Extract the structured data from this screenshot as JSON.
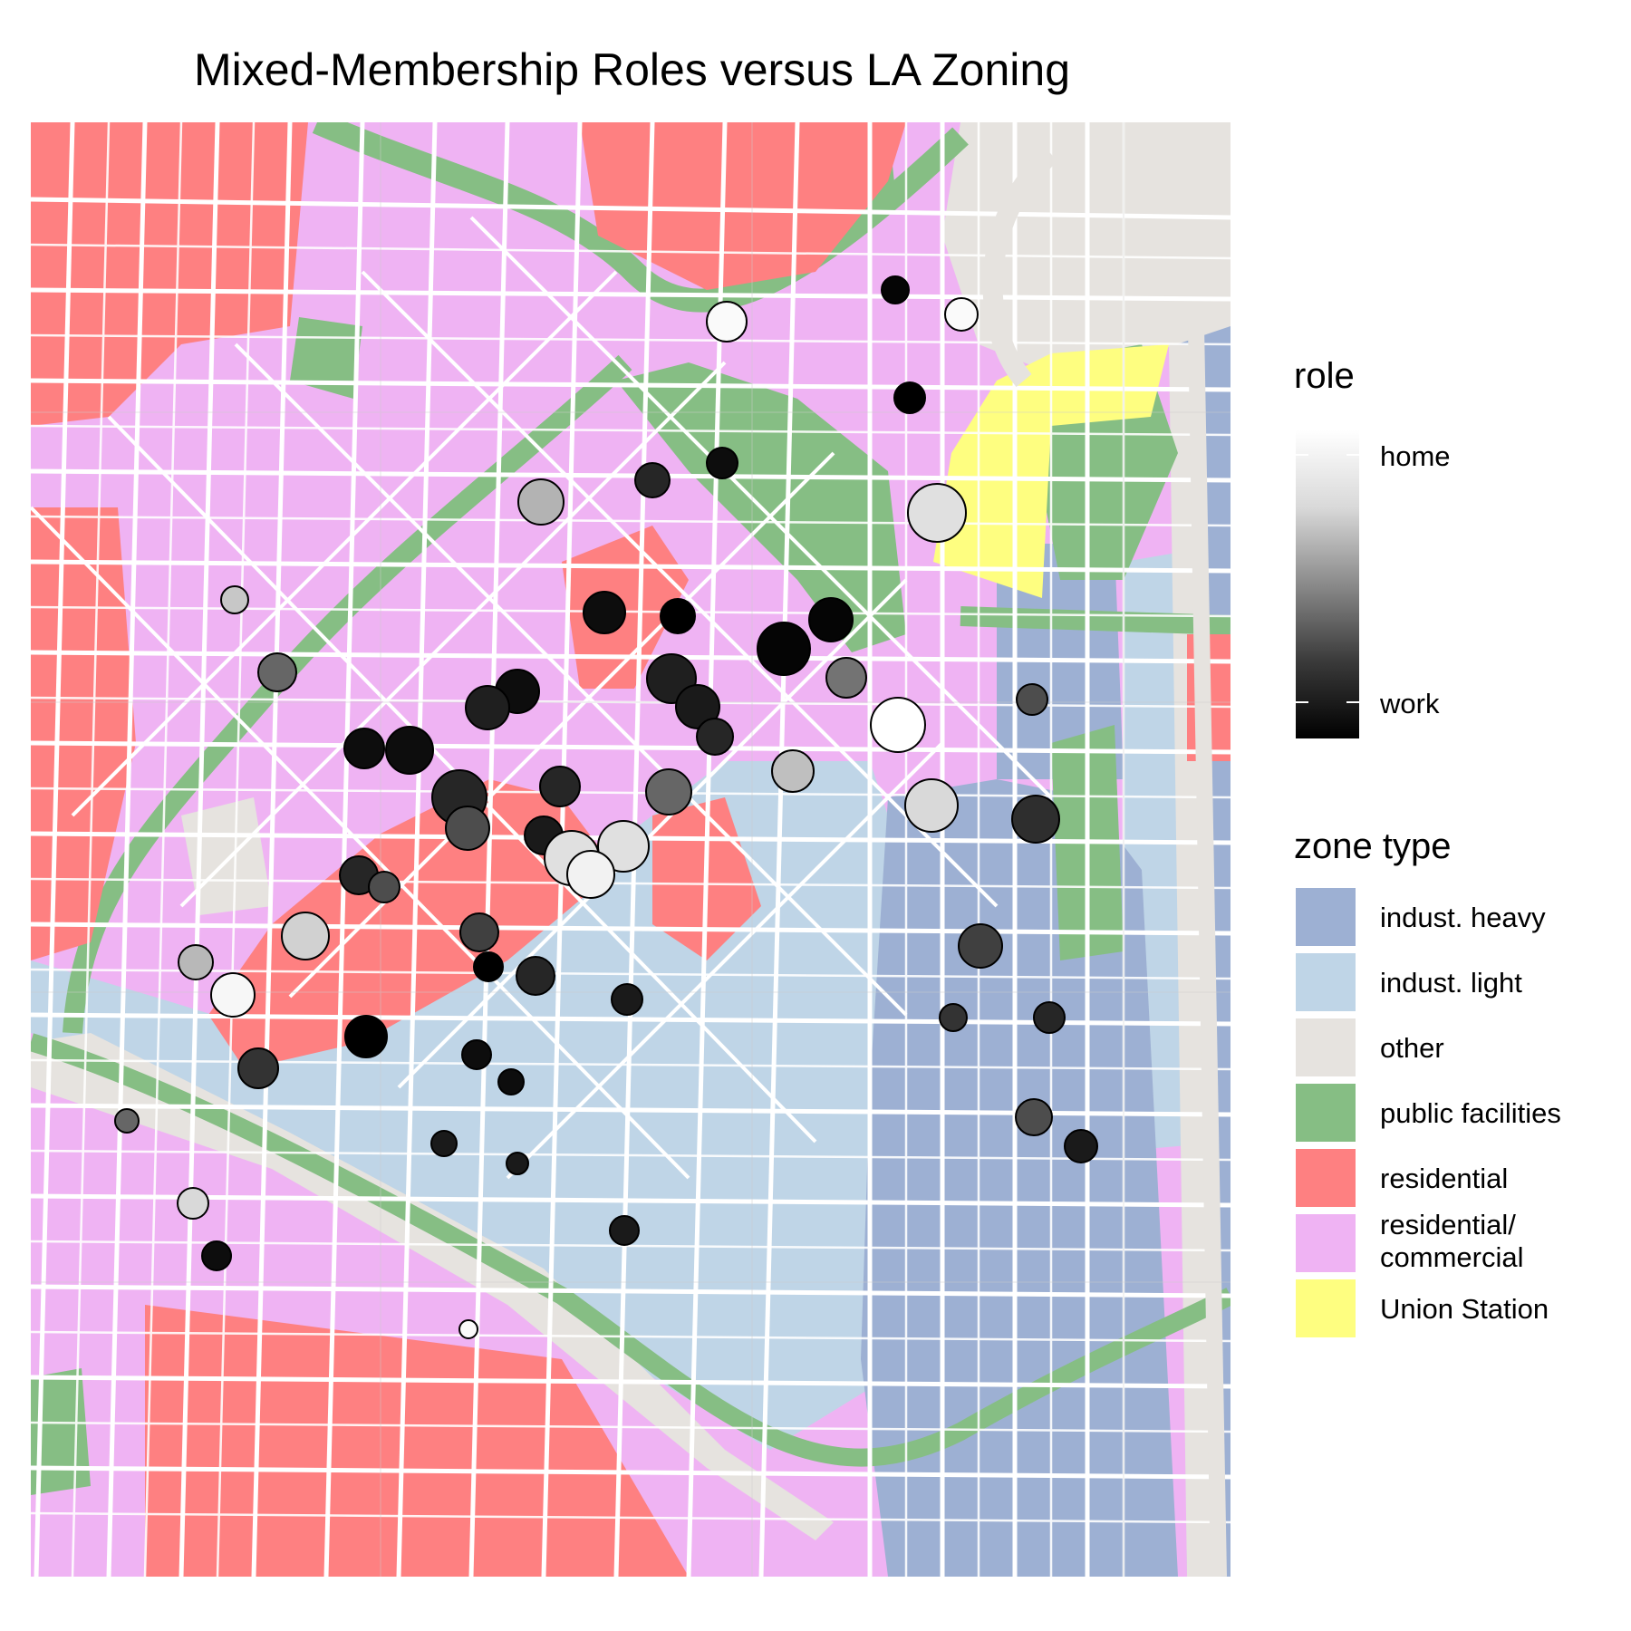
{
  "title": "Mixed-Membership Roles versus LA Zoning",
  "map": {
    "zones": [
      {
        "key": "indust_heavy",
        "label": "indust. heavy",
        "color": "#9db0d3"
      },
      {
        "key": "indust_light",
        "label": "indust. light",
        "color": "#bfd5e7"
      },
      {
        "key": "other",
        "label": "other",
        "color": "#e6e3df"
      },
      {
        "key": "public",
        "label": "public facilities",
        "color": "#86be84"
      },
      {
        "key": "residential",
        "label": "residential",
        "color": "#fe8081"
      },
      {
        "key": "res_comm",
        "label": "residential/\ncommercial",
        "color": "#efb3f3"
      },
      {
        "key": "union",
        "label": "Union Station",
        "color": "#fefe80"
      }
    ],
    "street_color": "#ffffff",
    "freeway_color": "#86be84"
  },
  "role_legend": {
    "title": "role",
    "top_label": "home",
    "bottom_label": "work",
    "gradient_top": "#ffffff",
    "gradient_bottom": "#000000"
  },
  "zone_legend": {
    "title": "zone type"
  },
  "points": [
    {
      "id": 1,
      "role": 0.65,
      "size": 1
    },
    {
      "id": 2,
      "role": 0.05,
      "size": 1
    },
    {
      "id": 3,
      "role": 0.05,
      "size": 2
    },
    {
      "id": 4,
      "role": 0.1,
      "size": 1
    },
    {
      "id": 5,
      "role": 0.15,
      "size": 1
    },
    {
      "id": 6,
      "role": 0.35,
      "size": 2
    },
    {
      "id": 7,
      "role": 0.05,
      "size": 1
    },
    {
      "id": 8,
      "role": 0.15,
      "size": 1
    }
  ]
}
